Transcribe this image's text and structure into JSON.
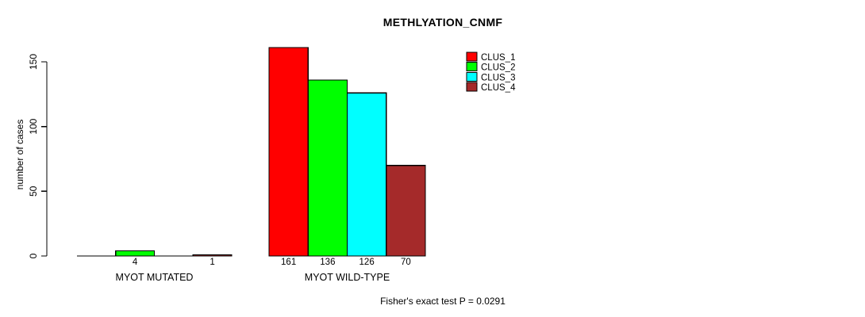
{
  "title": "METHLYATION_CNMF",
  "footer": "Fisher's exact test P = 0.0291",
  "chart_data": {
    "type": "bar",
    "title": "METHLYATION_CNMF",
    "xlabel": "",
    "ylabel": "number of cases",
    "ylim": [
      0,
      150
    ],
    "yticks": [
      0,
      50,
      100,
      150
    ],
    "ytick_labels": [
      "0",
      "50",
      "100",
      "150"
    ],
    "grid": false,
    "legend_position": "top-right",
    "categories": [
      "MYOT MUTATED",
      "MYOT WILD-TYPE"
    ],
    "series": [
      {
        "name": "CLUS_1",
        "color": "#FF0000",
        "values": [
          0,
          161
        ]
      },
      {
        "name": "CLUS_2",
        "color": "#00FF00",
        "values": [
          4,
          136
        ]
      },
      {
        "name": "CLUS_3",
        "color": "#00FFFF",
        "values": [
          0,
          126
        ]
      },
      {
        "name": "CLUS_4",
        "color": "#A52A2A",
        "values": [
          1,
          70
        ]
      }
    ],
    "bar_value_labels": {
      "MYOT MUTATED": [
        null,
        "4",
        null,
        "1"
      ],
      "MYOT WILD-TYPE": [
        "161",
        "136",
        "126",
        "70"
      ]
    },
    "annotation": "Fisher's exact test P = 0.0291",
    "colors": {
      "axis": "#000000",
      "background": "#FFFFFF",
      "bar_border": "#000000"
    }
  }
}
